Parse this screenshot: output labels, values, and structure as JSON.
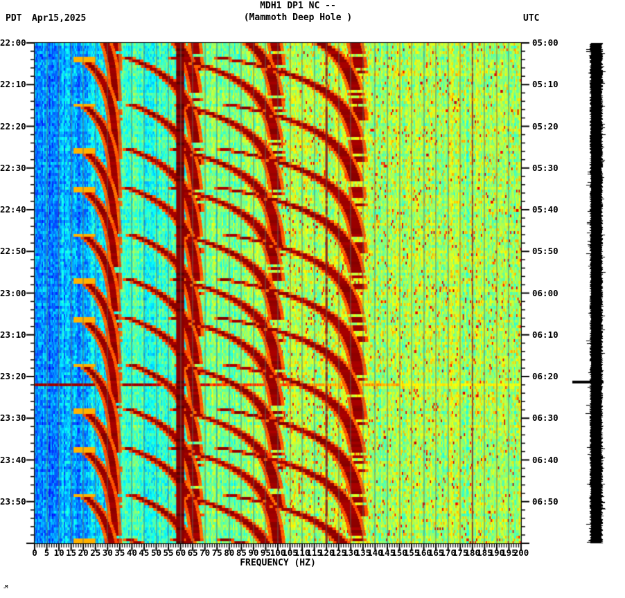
{
  "header": {
    "tz_left": "PDT",
    "date": "Apr15,2025",
    "title_line1": "MDH1 DP1 NC --",
    "title_line2": "(Mammoth Deep Hole )",
    "tz_right": "UTC"
  },
  "footer": {
    "corner_mark": ".M"
  },
  "chart_data": {
    "type": "heatmap",
    "subtype": "seismic-spectrogram",
    "station": "MDH1 DP1 NC",
    "station_description": "Mammoth Deep Hole",
    "title": "MDH1 DP1 NC -- (Mammoth Deep Hole )",
    "xlabel": "FREQUENCY (HZ)",
    "x_range_hz": [
      0,
      200
    ],
    "x_major_tick_step_hz": 5,
    "x_minor_tick_step_hz": 1,
    "x_tick_labels": [
      "0",
      "5",
      "10",
      "15",
      "20",
      "25",
      "30",
      "35",
      "40",
      "45",
      "50",
      "55",
      "60",
      "65",
      "70",
      "75",
      "80",
      "85",
      "90",
      "95",
      "100",
      "105",
      "110",
      "115",
      "120",
      "125",
      "130",
      "135",
      "140",
      "145",
      "150",
      "155",
      "160",
      "165",
      "170",
      "175",
      "180",
      "185",
      "190",
      "195",
      "200"
    ],
    "time_axis": {
      "left_timezone": "PDT",
      "right_timezone": "UTC",
      "date": "Apr15,2025",
      "start_pdt": "22:00",
      "duration_min": 120,
      "major_tick_step_min": 10,
      "minor_tick_step_min": 2,
      "left_labels": [
        "22:00",
        "22:10",
        "22:20",
        "22:30",
        "22:40",
        "22:50",
        "23:00",
        "23:10",
        "23:20",
        "23:30",
        "23:40",
        "23:50"
      ],
      "right_labels": [
        "05:00",
        "05:10",
        "05:20",
        "05:30",
        "05:40",
        "05:50",
        "06:00",
        "06:10",
        "06:20",
        "06:30",
        "06:40",
        "06:50"
      ],
      "grid_step_hz": 5
    },
    "colormap": "jet",
    "features": {
      "powerline_harmonics_hz": [
        60,
        120,
        180
      ],
      "powerline_band_hz": [
        58.5,
        61.2
      ],
      "gliding_harmonic_tremor": {
        "cycle_period_min": 10.4,
        "first_onset_min_after_start": 3.1,
        "fundamental_asymptote_hz": 33.6,
        "onset_depth_frac": 0.44,
        "rise_tau_min": 6.0,
        "harmonics": [
          1,
          2,
          3,
          4
        ],
        "visible_duration_min": 26,
        "max_visible_freq_hz": 140,
        "onset_streak_band_hz": [
          16,
          25
        ]
      },
      "broadband_event": {
        "time_pdt": "23:21",
        "time_utc": "06:21",
        "minutes_after_start": 81,
        "duration_min": 0.7,
        "strong_band_hz": [
          0,
          48
        ]
      },
      "background_bands": [
        {
          "hz": [
            0,
            22
          ],
          "level": 0.27
        },
        {
          "hz": [
            22,
            32
          ],
          "level": 0.36
        },
        {
          "hz": [
            32,
            62
          ],
          "level": 0.43
        },
        {
          "hz": [
            62,
            95
          ],
          "level": 0.5
        },
        {
          "hz": [
            95,
            200
          ],
          "level": 0.54
        }
      ]
    },
    "palette": {
      "deep_red": "#8b0000",
      "red": "#d02000",
      "orange": "#ff8c00",
      "yellow": "#f0e030",
      "green": "#50e080",
      "cyan": "#20d0d0",
      "blue": "#2070f0",
      "gridline": "rgba(95,108,100,0.85)",
      "axis": "#000000"
    },
    "legend": "none",
    "grid": true
  },
  "trace_panel": {
    "name": "clipped amplitude trace",
    "color": "#000000",
    "spike_minutes_after_start": 81,
    "spike_time_pdt": "23:21"
  }
}
